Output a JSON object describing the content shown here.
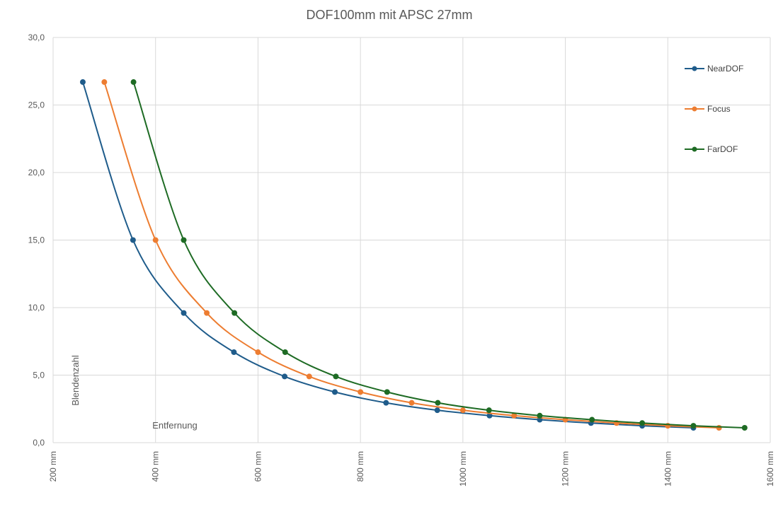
{
  "chart_data": {
    "type": "line",
    "title": "DOF100mm mit APSC 27mm",
    "xlabel": "Entfernung",
    "ylabel": "Blendenzahl",
    "xlim": [
      200,
      1600
    ],
    "ylim": [
      0,
      30
    ],
    "x_ticks": [
      200,
      400,
      600,
      800,
      1000,
      1200,
      1400,
      1600
    ],
    "x_tick_labels": [
      "200 mm",
      "400 mm",
      "600 mm",
      "800 mm",
      "1000 mm",
      "1200 mm",
      "1400 mm",
      "1600 mm"
    ],
    "y_ticks": [
      0,
      5,
      10,
      15,
      20,
      25,
      30
    ],
    "y_tick_labels": [
      "0,0",
      "5,0",
      "10,0",
      "15,0",
      "20,0",
      "25,0",
      "30,0"
    ],
    "grid": true,
    "legend_position": "top-right",
    "series": [
      {
        "name": "NearDOF",
        "color": "#1f5c8b",
        "points": [
          [
            258,
            26.7
          ],
          [
            356,
            15.0
          ],
          [
            455,
            9.6
          ],
          [
            553,
            6.7
          ],
          [
            652,
            4.9
          ],
          [
            750,
            3.75
          ],
          [
            850,
            2.95
          ],
          [
            950,
            2.4
          ],
          [
            1052,
            2.0
          ],
          [
            1150,
            1.7
          ],
          [
            1250,
            1.45
          ],
          [
            1350,
            1.25
          ],
          [
            1450,
            1.1
          ]
        ]
      },
      {
        "name": "Focus",
        "color": "#ed7d31",
        "points": [
          [
            300,
            26.7
          ],
          [
            400,
            15.0
          ],
          [
            500,
            9.6
          ],
          [
            600,
            6.7
          ],
          [
            700,
            4.9
          ],
          [
            800,
            3.75
          ],
          [
            900,
            2.95
          ],
          [
            1000,
            2.4
          ],
          [
            1100,
            2.0
          ],
          [
            1200,
            1.7
          ],
          [
            1300,
            1.45
          ],
          [
            1400,
            1.25
          ],
          [
            1500,
            1.1
          ]
        ]
      },
      {
        "name": "FarDOF",
        "color": "#1e6b24",
        "points": [
          [
            357,
            26.7
          ],
          [
            455,
            15.0
          ],
          [
            554,
            9.6
          ],
          [
            653,
            6.7
          ],
          [
            752,
            4.9
          ],
          [
            852,
            3.75
          ],
          [
            951,
            2.95
          ],
          [
            1051,
            2.4
          ],
          [
            1150,
            2.0
          ],
          [
            1252,
            1.7
          ],
          [
            1350,
            1.45
          ],
          [
            1450,
            1.25
          ],
          [
            1550,
            1.1
          ]
        ]
      }
    ]
  }
}
